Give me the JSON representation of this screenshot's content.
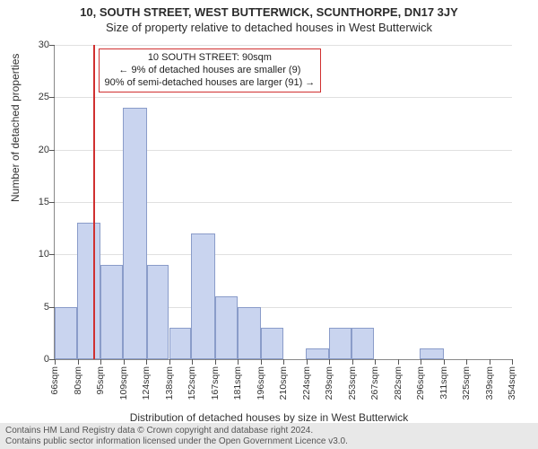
{
  "title_line1": "10, SOUTH STREET, WEST BUTTERWICK, SCUNTHORPE, DN17 3JY",
  "title_line2": "Size of property relative to detached houses in West Butterwick",
  "ylabel": "Number of detached properties",
  "xlabel": "Distribution of detached houses by size in West Butterwick",
  "footer_line1": "Contains HM Land Registry data © Crown copyright and database right 2024.",
  "footer_line2": "Contains public sector information licensed under the Open Government Licence v3.0.",
  "chart": {
    "type": "histogram",
    "y": {
      "min": 0,
      "max": 30,
      "tick_step": 5
    },
    "x_tick_labels": [
      "66sqm",
      "80sqm",
      "95sqm",
      "109sqm",
      "124sqm",
      "138sqm",
      "152sqm",
      "167sqm",
      "181sqm",
      "196sqm",
      "210sqm",
      "224sqm",
      "239sqm",
      "253sqm",
      "267sqm",
      "282sqm",
      "296sqm",
      "311sqm",
      "325sqm",
      "339sqm",
      "354sqm"
    ],
    "x_tick_step_sqm": 14.4,
    "x_min_sqm": 66,
    "x_max_sqm": 354,
    "bars": [
      {
        "from": 66,
        "to": 80,
        "value": 5
      },
      {
        "from": 80,
        "to": 95,
        "value": 13
      },
      {
        "from": 95,
        "to": 109,
        "value": 9
      },
      {
        "from": 109,
        "to": 124,
        "value": 24
      },
      {
        "from": 124,
        "to": 138,
        "value": 9
      },
      {
        "from": 138,
        "to": 152,
        "value": 3
      },
      {
        "from": 152,
        "to": 167,
        "value": 12
      },
      {
        "from": 167,
        "to": 181,
        "value": 6
      },
      {
        "from": 181,
        "to": 196,
        "value": 5
      },
      {
        "from": 196,
        "to": 210,
        "value": 3
      },
      {
        "from": 210,
        "to": 224,
        "value": 0
      },
      {
        "from": 224,
        "to": 239,
        "value": 1
      },
      {
        "from": 239,
        "to": 253,
        "value": 3
      },
      {
        "from": 253,
        "to": 267,
        "value": 3
      },
      {
        "from": 267,
        "to": 282,
        "value": 0
      },
      {
        "from": 282,
        "to": 296,
        "value": 0
      },
      {
        "from": 296,
        "to": 311,
        "value": 1
      },
      {
        "from": 311,
        "to": 325,
        "value": 0
      },
      {
        "from": 325,
        "to": 339,
        "value": 0
      },
      {
        "from": 339,
        "to": 354,
        "value": 0
      }
    ],
    "marker": {
      "sqm": 90,
      "color": "#d03030"
    },
    "callout": {
      "line1": "10 SOUTH STREET: 90sqm",
      "line2": "← 9% of detached houses are smaller (9)",
      "line3": "90% of semi-detached houses are larger (91) →",
      "border_color": "#d03030"
    },
    "bar_fill": "#c9d4ef",
    "bar_border": "#8a9cc9",
    "grid_color": "#e0e0e0",
    "axis_color": "#888888",
    "background": "#ffffff"
  }
}
